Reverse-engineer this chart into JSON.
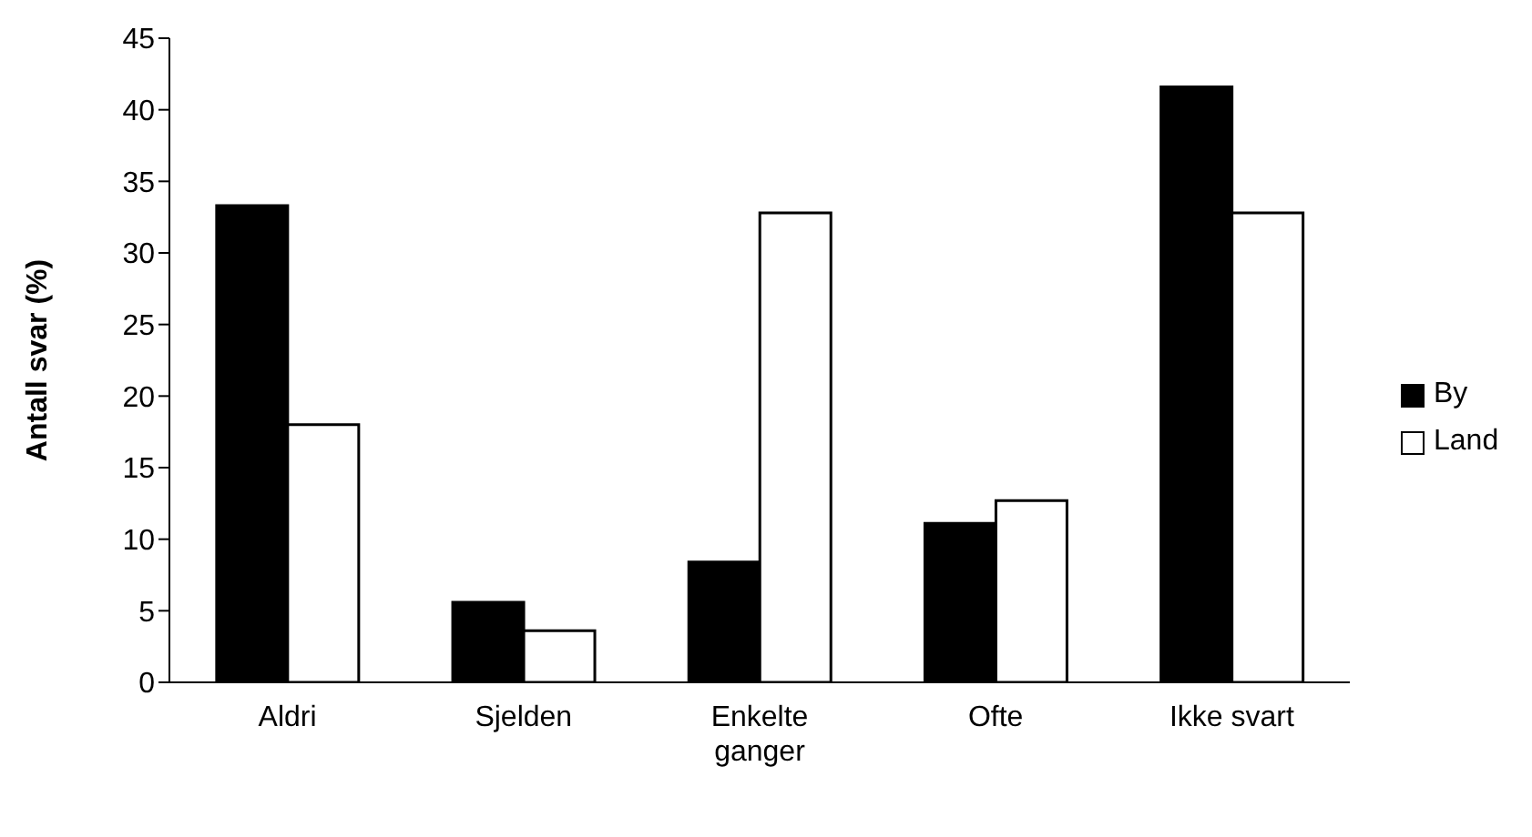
{
  "chart_data": {
    "type": "bar",
    "ylabel": "Antall svar (%)",
    "categories": [
      "Aldri",
      "Sjelden",
      "Enkelte ganger",
      "Ofte",
      "Ikke svart"
    ],
    "series": [
      {
        "name": "By",
        "color": "#000000",
        "values": [
          33.3,
          5.6,
          8.4,
          11.1,
          41.6
        ]
      },
      {
        "name": "Land",
        "color": "#ffffff",
        "values": [
          18.0,
          3.6,
          32.8,
          12.7,
          32.8
        ]
      }
    ],
    "ylim": [
      0,
      45
    ],
    "yticks": [
      0,
      5,
      10,
      15,
      20,
      25,
      30,
      35,
      40,
      45
    ],
    "grid": false,
    "legend": "right"
  }
}
